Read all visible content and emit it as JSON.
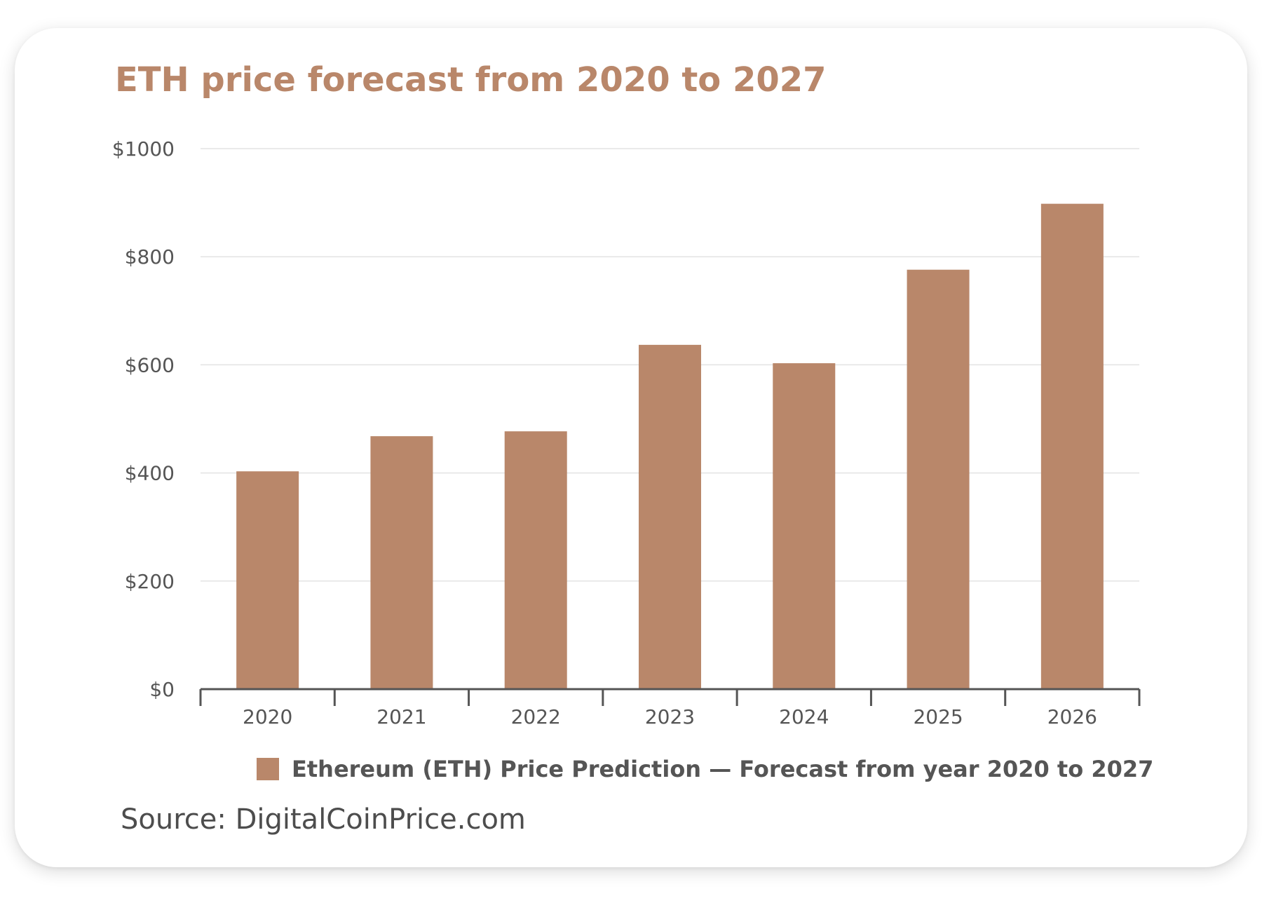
{
  "chart_data": {
    "type": "bar",
    "title": "ETH price forecast from 2020 to 2027",
    "xlabel": "",
    "ylabel": "",
    "categories": [
      "2020",
      "2021",
      "2022",
      "2023",
      "2024",
      "2025",
      "2026"
    ],
    "series": [
      {
        "name": "Ethereum (ETH) Price Prediction — Forecast from year 2020 to 2027",
        "values": [
          403,
          468,
          477,
          637,
          603,
          776,
          898
        ]
      }
    ],
    "ylim": [
      0,
      1000
    ],
    "yticks": [
      0,
      200,
      400,
      600,
      800,
      1000
    ],
    "ytick_labels": [
      "$0",
      "$200",
      "$400",
      "$600",
      "$800",
      "$1000"
    ],
    "grid": true,
    "legend_position": "bottom",
    "bar_color": "#b9876a"
  },
  "source": "Source: DigitalCoinPrice.com"
}
